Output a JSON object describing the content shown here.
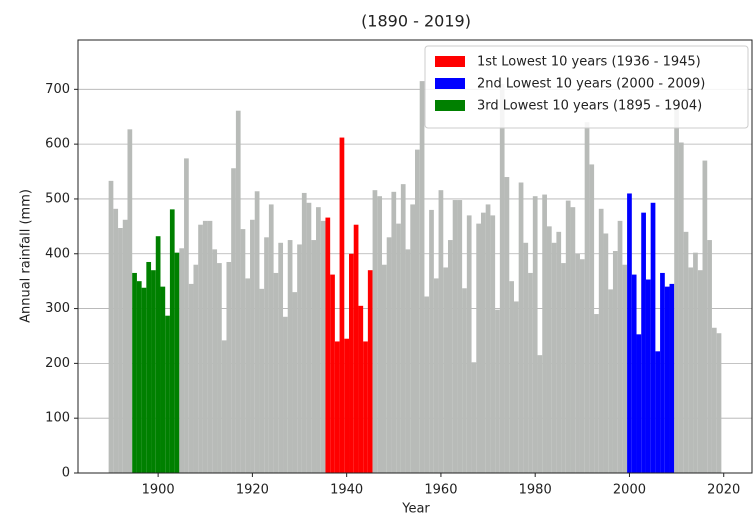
{
  "chart_data": {
    "type": "bar",
    "title": "(1890 - 2019)",
    "xlabel": "Year",
    "ylabel": "Annual rainfall (mm)",
    "x": [
      1890,
      1891,
      1892,
      1893,
      1894,
      1895,
      1896,
      1897,
      1898,
      1899,
      1900,
      1901,
      1902,
      1903,
      1904,
      1905,
      1906,
      1907,
      1908,
      1909,
      1910,
      1911,
      1912,
      1913,
      1914,
      1915,
      1916,
      1917,
      1918,
      1919,
      1920,
      1921,
      1922,
      1923,
      1924,
      1925,
      1926,
      1927,
      1928,
      1929,
      1930,
      1931,
      1932,
      1933,
      1934,
      1935,
      1936,
      1937,
      1938,
      1939,
      1940,
      1941,
      1942,
      1943,
      1944,
      1945,
      1946,
      1947,
      1948,
      1949,
      1950,
      1951,
      1952,
      1953,
      1954,
      1955,
      1956,
      1957,
      1958,
      1959,
      1960,
      1961,
      1962,
      1963,
      1964,
      1965,
      1966,
      1967,
      1968,
      1969,
      1970,
      1971,
      1972,
      1973,
      1974,
      1975,
      1976,
      1977,
      1978,
      1979,
      1980,
      1981,
      1982,
      1983,
      1984,
      1985,
      1986,
      1987,
      1988,
      1989,
      1990,
      1991,
      1992,
      1993,
      1994,
      1995,
      1996,
      1997,
      1998,
      1999,
      2000,
      2001,
      2002,
      2003,
      2004,
      2005,
      2006,
      2007,
      2008,
      2009,
      2010,
      2011,
      2012,
      2013,
      2014,
      2015,
      2016,
      2017,
      2018,
      2019
    ],
    "values": [
      533,
      482,
      447,
      462,
      627,
      365,
      350,
      338,
      385,
      370,
      432,
      340,
      287,
      481,
      402,
      410,
      574,
      345,
      380,
      453,
      460,
      460,
      408,
      383,
      242,
      385,
      556,
      661,
      445,
      355,
      462,
      514,
      336,
      430,
      490,
      365,
      420,
      285,
      425,
      330,
      417,
      511,
      493,
      425,
      485,
      460,
      466,
      362,
      240,
      612,
      245,
      400,
      453,
      305,
      240,
      370,
      516,
      505,
      380,
      430,
      513,
      455,
      527,
      408,
      490,
      590,
      715,
      322,
      480,
      355,
      516,
      375,
      425,
      498,
      498,
      337,
      470,
      202,
      455,
      475,
      490,
      470,
      298,
      710,
      540,
      350,
      313,
      530,
      420,
      365,
      505,
      215,
      508,
      450,
      420,
      440,
      383,
      497,
      485,
      400,
      390,
      640,
      563,
      290,
      482,
      437,
      335,
      405,
      460,
      380,
      510,
      362,
      253,
      475,
      353,
      493,
      222,
      365,
      340,
      345,
      665,
      603,
      440,
      375,
      402,
      370,
      570,
      425,
      265,
      255
    ],
    "color": "#b8bbb8",
    "highlights": [
      {
        "name": "1st Lowest 10 years (1936 - 1945)",
        "color": "#ff0000",
        "range": [
          1936,
          1945
        ]
      },
      {
        "name": "2nd Lowest 10 years (2000 - 2009)",
        "color": "#0000ff",
        "range": [
          2000,
          2009
        ]
      },
      {
        "name": "3rd Lowest 10 years (1895 - 1904)",
        "color": "#008000",
        "range": [
          1895,
          1904
        ]
      }
    ],
    "xlim": [
      1883,
      2026
    ],
    "ylim": [
      0,
      790
    ],
    "xticks": [
      1900,
      1920,
      1940,
      1960,
      1980,
      2000,
      2020
    ],
    "yticks": [
      0,
      100,
      200,
      300,
      400,
      500,
      600,
      700
    ],
    "grid": true,
    "legend": "upper right"
  }
}
